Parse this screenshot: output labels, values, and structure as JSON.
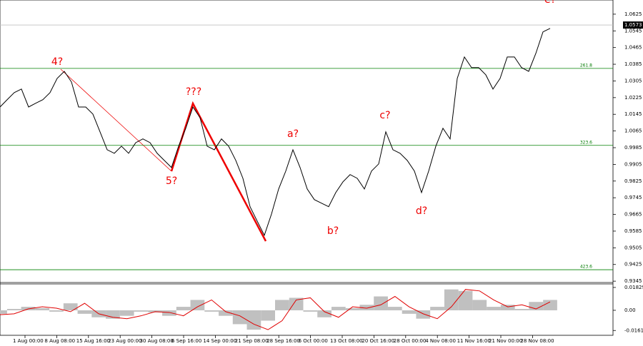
{
  "chart_data": {
    "type": "line",
    "price": {
      "values": [
        1.018,
        1.0215,
        1.0249,
        1.0266,
        1.018,
        1.0198,
        1.0215,
        1.0249,
        1.0317,
        1.0351,
        1.03,
        1.018,
        1.018,
        1.0146,
        1.0061,
        0.9975,
        0.9958,
        0.9992,
        0.9958,
        1.0009,
        1.0027,
        1.0009,
        0.9958,
        0.9924,
        0.989,
        0.9992,
        1.0078,
        1.018,
        1.0129,
        0.9992,
        0.9975,
        1.0027,
        0.9992,
        0.9924,
        0.9838,
        0.9702,
        0.9633,
        0.9565,
        0.9667,
        0.9787,
        0.9873,
        0.9975,
        0.989,
        0.9787,
        0.9736,
        0.9719,
        0.9702,
        0.977,
        0.9821,
        0.9856,
        0.9838,
        0.9787,
        0.9873,
        0.9907,
        1.0061,
        0.9975,
        0.9958,
        0.9924,
        0.9873,
        0.977,
        0.9873,
        0.9992,
        1.0078,
        1.0027,
        1.0317,
        1.042,
        1.0369,
        1.0369,
        1.0334,
        1.0266,
        1.0317,
        1.042,
        1.042,
        1.0369,
        1.0351,
        1.0437,
        1.054,
        1.0557
      ],
      "color": "#000000"
    },
    "ylim": [
      0.9342,
      1.0693
    ],
    "yticks": [
      1.0625,
      1.0545,
      1.0465,
      1.0385,
      1.0305,
      1.0225,
      1.0145,
      1.0065,
      0.9985,
      0.9905,
      0.9825,
      0.9745,
      0.9665,
      0.9585,
      0.9505,
      0.9425,
      0.9345
    ],
    "current_price": 1.0573,
    "levels": [
      {
        "price": 1.0365,
        "label": "261.8"
      },
      {
        "price": 0.9996,
        "label": "323.6"
      },
      {
        "price": 0.94,
        "label": "423.6"
      }
    ],
    "level_color": "#008000",
    "wave_labels": [
      "4?",
      "5?",
      "???",
      "a?",
      "b?",
      "c?",
      "d?",
      "e?"
    ],
    "oscillator": {
      "histogram": [
        -0.0028,
        0.0011,
        0.0028,
        0.0017,
        -0.0011,
        0.0056,
        -0.0028,
        -0.0056,
        -0.0067,
        -0.0044,
        -0.0011,
        -0.0017,
        -0.0044,
        0.0028,
        0.0083,
        -0.0011,
        -0.0044,
        -0.0111,
        -0.0155,
        -0.0083,
        0.0083,
        0.01,
        -0.0011,
        -0.0056,
        0.0028,
        0.0017,
        0.0044,
        0.0111,
        0.0028,
        -0.0028,
        -0.0067,
        0.0028,
        0.0167,
        0.0155,
        0.0083,
        0.0028,
        0.0044,
        0.0011,
        0.0067,
        0.0083
      ],
      "signal": [
        -0.0035,
        -0.0028,
        0.0011,
        0.0028,
        0.0017,
        -0.0011,
        0.0056,
        -0.0028,
        -0.0056,
        -0.0067,
        -0.0044,
        -0.0011,
        -0.0017,
        -0.0044,
        0.0028,
        0.0083,
        -0.0011,
        -0.0044,
        -0.0111,
        -0.0155,
        -0.0083,
        0.0083,
        0.01,
        -0.0011,
        -0.0056,
        0.0028,
        0.0017,
        0.0044,
        0.0111,
        0.0028,
        -0.0028,
        -0.0067,
        0.0028,
        0.0167,
        0.0155,
        0.0083,
        0.0028,
        0.0044,
        0.0011,
        0.0067
      ],
      "histogram_color": "#c0c0c0",
      "signal_color": "#e00000",
      "ylim": [
        -0.02,
        0.0211
      ],
      "yticks": [
        0.01829,
        {
          "value": 0,
          "label": "0.00"
        },
        -0.01615
      ]
    },
    "x_labels": [
      "1 Aug 00:00",
      "8 Aug 08:00",
      "15 Aug 16:00",
      "23 Aug 00:00",
      "30 Aug 08:00",
      "6 Sep 16:00",
      "14 Sep 00:00",
      "21 Sep 08:00",
      "28 Sep 16:00",
      "6 Oct 00:00",
      "13 Oct 08:00",
      "20 Oct 16:00",
      "28 Oct 00:00",
      "4 Nov 08:00",
      "11 Nov 16:00",
      "21 Nov 00:00",
      "28 Nov 08:00"
    ]
  }
}
